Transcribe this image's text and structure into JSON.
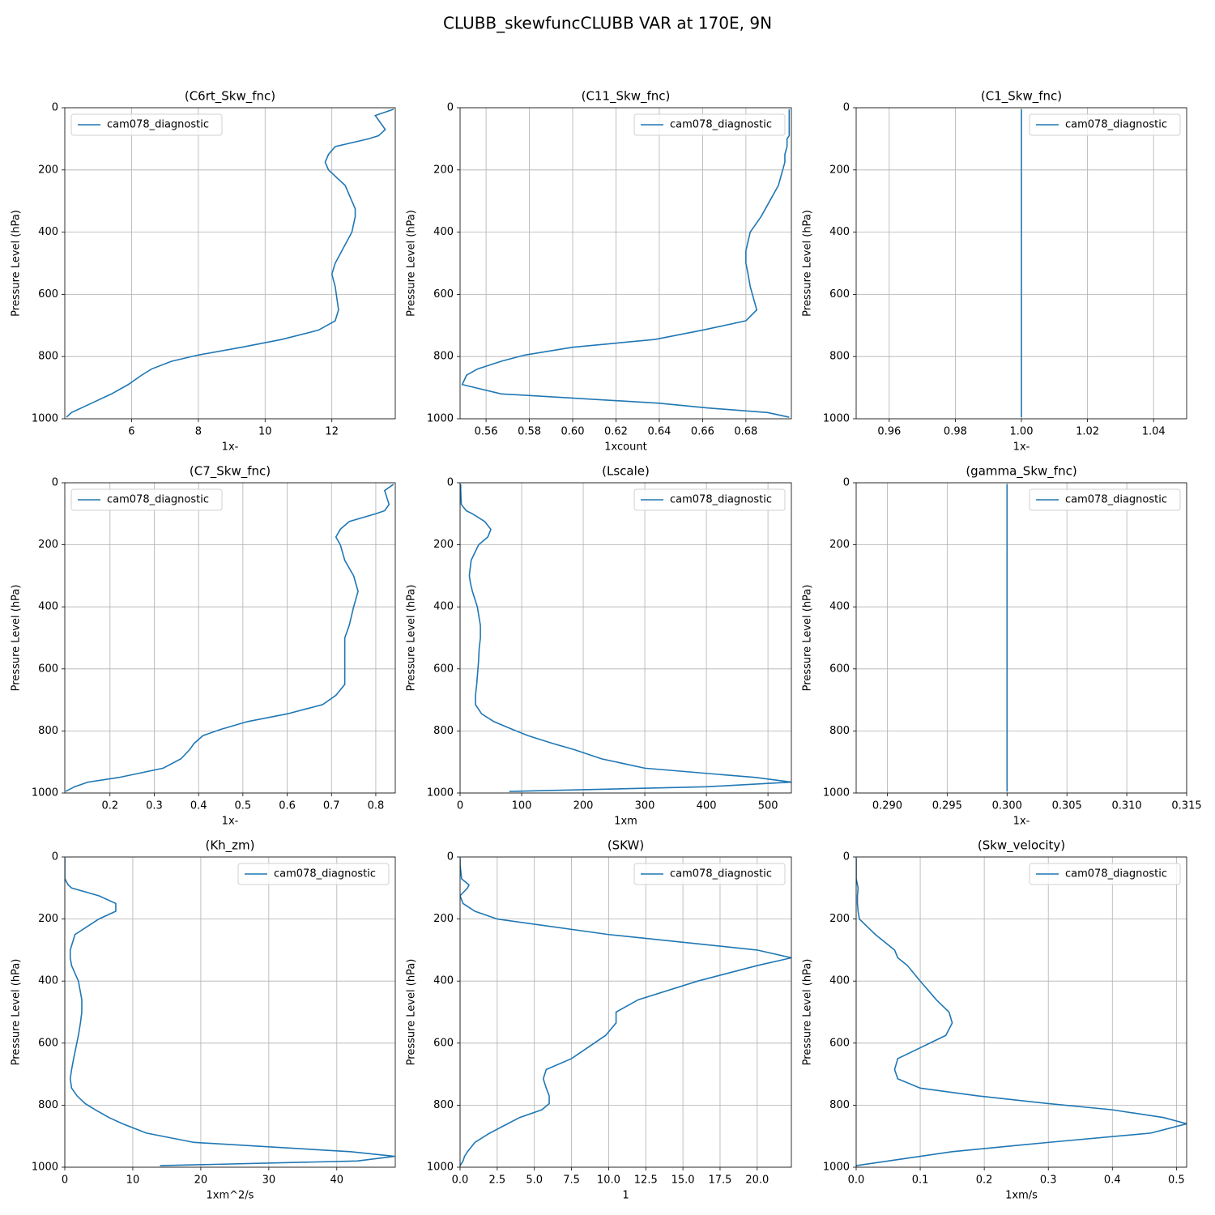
{
  "title": "CLUBB_skewfuncCLUBB VAR at 170E, 9N",
  "chart_data": [
    {
      "type": "line",
      "title": "(C6rt_Skw_fnc)",
      "xlabel": "1x-",
      "ylabel": "Pressure Level (hPa)",
      "y": [
        5,
        25,
        70,
        90,
        100,
        125,
        150,
        175,
        200,
        250,
        300,
        325,
        350,
        400,
        460,
        500,
        535,
        575,
        650,
        685,
        715,
        745,
        770,
        795,
        815,
        840,
        860,
        890,
        920,
        950,
        965,
        980,
        995
      ],
      "ylim": [
        1000,
        0
      ],
      "yticks": [
        0,
        200,
        400,
        600,
        800,
        1000
      ],
      "xlim": [
        4.0,
        13.9
      ],
      "xticks": [
        6,
        8,
        10,
        12
      ],
      "grid": true,
      "legend": "upper left",
      "series": [
        {
          "name": "cam078_diagnostic",
          "color": "#1f77b4",
          "values": [
            13.85,
            13.3,
            13.6,
            13.4,
            13.1,
            12.1,
            11.9,
            11.8,
            11.9,
            12.4,
            12.6,
            12.7,
            12.7,
            12.6,
            12.3,
            12.1,
            12.0,
            12.1,
            12.2,
            12.1,
            11.6,
            10.5,
            9.3,
            8.0,
            7.2,
            6.6,
            6.3,
            5.9,
            5.4,
            4.8,
            4.5,
            4.2,
            4.05
          ]
        }
      ]
    },
    {
      "type": "line",
      "title": "(C11_Skw_fnc)",
      "xlabel": "1xcount",
      "ylabel": "Pressure Level (hPa)",
      "y": [
        5,
        25,
        70,
        90,
        100,
        125,
        150,
        175,
        200,
        250,
        300,
        325,
        350,
        400,
        460,
        500,
        535,
        575,
        650,
        685,
        715,
        745,
        770,
        795,
        815,
        840,
        860,
        890,
        920,
        950,
        965,
        980,
        995
      ],
      "ylim": [
        1000,
        0
      ],
      "yticks": [
        0,
        200,
        400,
        600,
        800,
        1000
      ],
      "xlim": [
        0.548,
        0.701
      ],
      "xticks": [
        0.56,
        0.58,
        {
          "value": 0.6,
          "label": "0.60"
        },
        0.62,
        0.64,
        0.66,
        0.68
      ],
      "grid": true,
      "legend": "upper right",
      "series": [
        {
          "name": "cam078_diagnostic",
          "color": "#1f77b4",
          "values": [
            0.7,
            0.7,
            0.7,
            0.7,
            0.699,
            0.699,
            0.698,
            0.698,
            0.697,
            0.695,
            0.691,
            0.689,
            0.687,
            0.682,
            0.68,
            0.68,
            0.681,
            0.682,
            0.685,
            0.68,
            0.66,
            0.638,
            0.6,
            0.578,
            0.567,
            0.556,
            0.551,
            0.549,
            0.567,
            0.64,
            0.662,
            0.69,
            0.7
          ]
        }
      ]
    },
    {
      "type": "line",
      "title": "(C1_Skw_fnc)",
      "xlabel": "1x-",
      "ylabel": "Pressure Level (hPa)",
      "y": [
        5,
        25,
        70,
        90,
        100,
        125,
        150,
        175,
        200,
        250,
        300,
        325,
        350,
        400,
        460,
        500,
        535,
        575,
        650,
        685,
        715,
        745,
        770,
        795,
        815,
        840,
        860,
        890,
        920,
        950,
        965,
        980,
        995
      ],
      "ylim": [
        1000,
        0
      ],
      "yticks": [
        0,
        200,
        400,
        600,
        800,
        1000
      ],
      "xlim": [
        0.95,
        1.05
      ],
      "xticks": [
        0.96,
        0.98,
        {
          "value": 1,
          "label": "1.00"
        },
        1.02,
        1.04
      ],
      "grid": true,
      "legend": "upper right",
      "series": [
        {
          "name": "cam078_diagnostic",
          "color": "#1f77b4",
          "values": [
            1,
            1,
            1,
            1,
            1,
            1,
            1,
            1,
            1,
            1,
            1,
            1,
            1,
            1,
            1,
            1,
            1,
            1,
            1,
            1,
            1,
            1,
            1,
            1,
            1,
            1,
            1,
            1,
            1,
            1,
            1,
            1,
            1
          ]
        }
      ]
    },
    {
      "type": "line",
      "title": "(C7_Skw_fnc)",
      "xlabel": "1x-",
      "ylabel": "Pressure Level (hPa)",
      "y": [
        5,
        25,
        70,
        90,
        100,
        125,
        150,
        175,
        200,
        250,
        300,
        325,
        350,
        400,
        460,
        500,
        535,
        575,
        650,
        685,
        715,
        745,
        770,
        795,
        815,
        840,
        860,
        890,
        920,
        950,
        965,
        980,
        995
      ],
      "ylim": [
        1000,
        0
      ],
      "yticks": [
        0,
        200,
        400,
        600,
        800,
        1000
      ],
      "xlim": [
        0.098,
        0.844
      ],
      "xticks": [
        0.2,
        0.3,
        0.4,
        0.5,
        0.6,
        0.7,
        0.8
      ],
      "grid": true,
      "legend": "upper left",
      "series": [
        {
          "name": "cam078_diagnostic",
          "color": "#1f77b4",
          "values": [
            0.84,
            0.82,
            0.83,
            0.82,
            0.8,
            0.74,
            0.72,
            0.71,
            0.72,
            0.73,
            0.75,
            0.755,
            0.76,
            0.75,
            0.74,
            0.73,
            0.73,
            0.73,
            0.73,
            0.71,
            0.68,
            0.6,
            0.51,
            0.45,
            0.41,
            0.39,
            0.38,
            0.36,
            0.32,
            0.22,
            0.15,
            0.12,
            0.1
          ]
        }
      ]
    },
    {
      "type": "line",
      "title": "(Lscale)",
      "xlabel": "1xm",
      "ylabel": "Pressure Level (hPa)",
      "y": [
        5,
        25,
        70,
        90,
        100,
        125,
        150,
        175,
        200,
        250,
        300,
        325,
        350,
        400,
        460,
        500,
        535,
        575,
        650,
        685,
        715,
        745,
        770,
        795,
        815,
        840,
        860,
        890,
        920,
        950,
        965,
        980,
        995
      ],
      "ylim": [
        1000,
        0
      ],
      "yticks": [
        0,
        200,
        400,
        600,
        800,
        1000
      ],
      "xlim": [
        0,
        538
      ],
      "xticks": [
        0,
        100,
        200,
        300,
        400,
        500
      ],
      "grid": true,
      "legend": "upper right",
      "series": [
        {
          "name": "cam078_diagnostic",
          "color": "#1f77b4",
          "values": [
            1,
            1,
            2,
            10,
            20,
            40,
            50,
            45,
            30,
            18,
            15,
            17,
            20,
            28,
            33,
            33,
            31,
            30,
            27,
            25,
            25,
            35,
            55,
            85,
            110,
            150,
            185,
            230,
            300,
            480,
            538,
            400,
            80
          ]
        }
      ]
    },
    {
      "type": "line",
      "title": "(gamma_Skw_fnc)",
      "xlabel": "1x-",
      "ylabel": "Pressure Level (hPa)",
      "y": [
        5,
        25,
        70,
        90,
        100,
        125,
        150,
        175,
        200,
        250,
        300,
        325,
        350,
        400,
        460,
        500,
        535,
        575,
        650,
        685,
        715,
        745,
        770,
        795,
        815,
        840,
        860,
        890,
        920,
        950,
        965,
        980,
        995
      ],
      "ylim": [
        1000,
        0
      ],
      "yticks": [
        0,
        200,
        400,
        600,
        800,
        1000
      ],
      "xlim": [
        0.2874,
        0.315
      ],
      "xticks": [
        {
          "value": 0.29,
          "label": "0.290"
        },
        0.295,
        {
          "value": 0.3,
          "label": "0.300"
        },
        0.305,
        {
          "value": 0.31,
          "label": "0.310"
        },
        0.315
      ],
      "grid": true,
      "legend": "upper right",
      "series": [
        {
          "name": "cam078_diagnostic",
          "color": "#1f77b4",
          "values": [
            0.3,
            0.3,
            0.3,
            0.3,
            0.3,
            0.3,
            0.3,
            0.3,
            0.3,
            0.3,
            0.3,
            0.3,
            0.3,
            0.3,
            0.3,
            0.3,
            0.3,
            0.3,
            0.3,
            0.3,
            0.3,
            0.3,
            0.3,
            0.3,
            0.3,
            0.3,
            0.3,
            0.3,
            0.3,
            0.3,
            0.3,
            0.3,
            0.3
          ]
        }
      ]
    },
    {
      "type": "line",
      "title": "(Kh_zm)",
      "xlabel": "1xm^2/s",
      "ylabel": "Pressure Level (hPa)",
      "y": [
        5,
        25,
        70,
        90,
        100,
        125,
        150,
        175,
        200,
        250,
        300,
        325,
        350,
        400,
        460,
        500,
        535,
        575,
        650,
        685,
        715,
        745,
        770,
        795,
        815,
        840,
        860,
        890,
        920,
        950,
        965,
        980,
        995
      ],
      "ylim": [
        1000,
        0
      ],
      "yticks": [
        0,
        200,
        400,
        600,
        800,
        1000
      ],
      "xlim": [
        0,
        48.6
      ],
      "xticks": [
        0,
        10,
        20,
        30,
        40
      ],
      "grid": true,
      "legend": "upper right",
      "series": [
        {
          "name": "cam078_diagnostic",
          "color": "#1f77b4",
          "values": [
            0,
            0,
            0,
            0.5,
            1,
            5,
            7.5,
            7.5,
            5,
            1.5,
            0.8,
            0.8,
            1,
            2,
            2.5,
            2.5,
            2.3,
            2,
            1.3,
            1,
            0.8,
            1,
            1.8,
            3,
            4.5,
            6.5,
            8.5,
            12,
            19,
            42,
            48.5,
            43,
            14
          ]
        }
      ]
    },
    {
      "type": "line",
      "title": "(SKW)",
      "xlabel": "1",
      "ylabel": "Pressure Level (hPa)",
      "y": [
        5,
        25,
        70,
        90,
        100,
        125,
        150,
        175,
        200,
        250,
        300,
        325,
        350,
        400,
        460,
        500,
        535,
        575,
        650,
        685,
        715,
        745,
        770,
        795,
        815,
        840,
        860,
        890,
        920,
        950,
        965,
        980,
        995
      ],
      "ylim": [
        1000,
        0
      ],
      "yticks": [
        0,
        200,
        400,
        600,
        800,
        1000
      ],
      "xlim": [
        0,
        22.3
      ],
      "xticks": [
        {
          "value": 0,
          "label": "0.0"
        },
        2.5,
        {
          "value": 5,
          "label": "5.0"
        },
        7.5,
        {
          "value": 10,
          "label": "10.0"
        },
        12.5,
        {
          "value": 15,
          "label": "15.0"
        },
        17.5,
        {
          "value": 20,
          "label": "20.0"
        }
      ],
      "grid": true,
      "legend": "upper right",
      "series": [
        {
          "name": "cam078_diagnostic",
          "color": "#1f77b4",
          "values": [
            0,
            0,
            0.1,
            0.6,
            0.5,
            0,
            0.2,
            1,
            2.5,
            10,
            20,
            22.3,
            20,
            16,
            12,
            10.5,
            10.5,
            9.8,
            7.5,
            5.8,
            5.6,
            5.8,
            6,
            6,
            5.5,
            4,
            3.2,
            2,
            1,
            0.5,
            0.3,
            0.2,
            0
          ]
        }
      ]
    },
    {
      "type": "line",
      "title": "(Skw_velocity)",
      "xlabel": "1xm/s",
      "ylabel": "Pressure Level (hPa)",
      "y": [
        5,
        25,
        70,
        90,
        100,
        125,
        150,
        175,
        200,
        250,
        300,
        325,
        350,
        400,
        460,
        500,
        535,
        575,
        650,
        685,
        715,
        745,
        770,
        795,
        815,
        840,
        860,
        890,
        920,
        950,
        965,
        980,
        995
      ],
      "ylim": [
        1000,
        0
      ],
      "yticks": [
        0,
        200,
        400,
        600,
        800,
        1000
      ],
      "xlim": [
        0,
        0.516
      ],
      "xticks": [
        {
          "value": 0,
          "label": "0.0"
        },
        0.1,
        0.2,
        0.3,
        0.4,
        0.5
      ],
      "grid": true,
      "legend": "upper right",
      "series": [
        {
          "name": "cam078_diagnostic",
          "color": "#1f77b4",
          "values": [
            0,
            0,
            0,
            0.002,
            0.003,
            0.002,
            0.002,
            0.003,
            0.005,
            0.03,
            0.06,
            0.065,
            0.08,
            0.1,
            0.125,
            0.145,
            0.15,
            0.14,
            0.065,
            0.06,
            0.065,
            0.1,
            0.19,
            0.3,
            0.4,
            0.48,
            0.516,
            0.46,
            0.3,
            0.15,
            0.1,
            0.05,
            0
          ]
        }
      ]
    }
  ]
}
